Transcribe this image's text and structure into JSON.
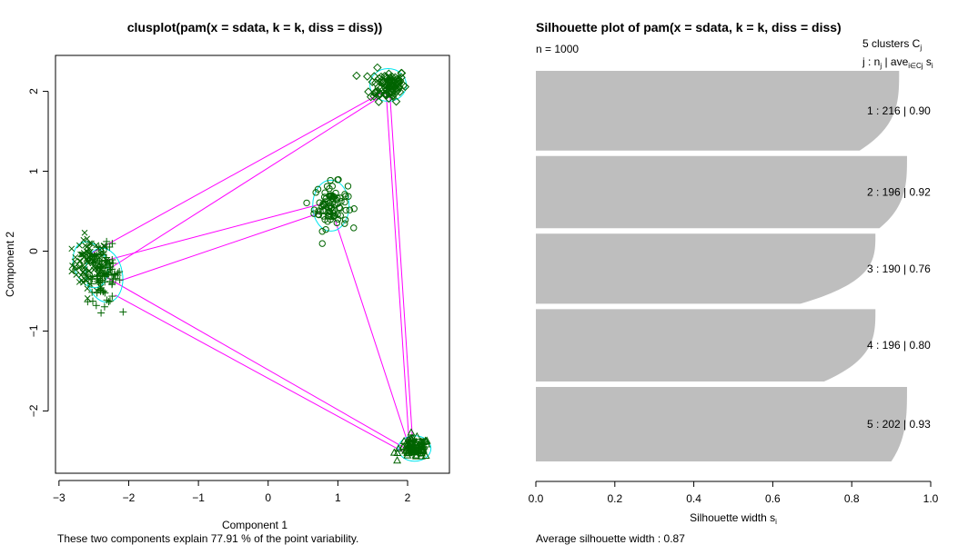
{
  "clusplot": {
    "title": "clusplot(pam(x = sdata, k = k, diss = diss))",
    "xlabel": "Component 1",
    "ylabel": "Component 2",
    "subtitle": "These two components explain 77.91 % of the point variability.",
    "x_ticks": [
      {
        "v": -3,
        "label": "−3"
      },
      {
        "v": -2,
        "label": "−2"
      },
      {
        "v": -1,
        "label": "−1"
      },
      {
        "v": 0,
        "label": "0"
      },
      {
        "v": 1,
        "label": "1"
      },
      {
        "v": 2,
        "label": "2"
      }
    ],
    "y_ticks": [
      {
        "v": -2,
        "label": "−2"
      },
      {
        "v": -1,
        "label": "−1"
      },
      {
        "v": 0,
        "label": "0"
      },
      {
        "v": 1,
        "label": "1"
      },
      {
        "v": 2,
        "label": "2"
      }
    ]
  },
  "silhouette": {
    "title": "Silhouette plot of pam(x = sdata, k = k, diss = diss)",
    "n_label": "n = 1000",
    "header_line1": "5  clusters  C",
    "header_line1_sub": "j",
    "header_line2": "j :  n",
    "header_line2_sub": "j",
    "header_line2_rest": " | ave",
    "header_line2_sub2": "i∈Cj",
    "header_line2_end": "  s",
    "header_line2_sub3": "i",
    "xlabel": "Silhouette width  s",
    "xlabel_sub": "i",
    "avg_text": "Average silhouette width :  0.87",
    "x_ticks": [
      {
        "v": 0.0,
        "label": "0.0"
      },
      {
        "v": 0.2,
        "label": "0.2"
      },
      {
        "v": 0.4,
        "label": "0.4"
      },
      {
        "v": 0.6,
        "label": "0.6"
      },
      {
        "v": 0.8,
        "label": "0.8"
      },
      {
        "v": 1.0,
        "label": "1.0"
      }
    ],
    "cluster_labels": [
      "1 :  216  |  0.90",
      "2 :  196  |  0.92",
      "3 :  190  |  0.76",
      "4 :  196  |  0.80",
      "5 :  202  |  0.93"
    ]
  },
  "chart_data": [
    {
      "type": "scatter",
      "title": "clusplot(pam(x = sdata, k = k, diss = diss))",
      "xlabel": "Component 1",
      "ylabel": "Component 2",
      "xlim": [
        -3.05,
        2.6
      ],
      "ylim": [
        -2.78,
        2.45
      ],
      "point_color": "#006400",
      "ellipse_color": "#00E5EE",
      "line_color": "#FF00FF",
      "clusters": [
        {
          "id": 1,
          "center": [
            -2.55,
            -0.17
          ],
          "n": 216,
          "symbol": "x"
        },
        {
          "id": 2,
          "center": [
            1.72,
            2.08
          ],
          "n": 196,
          "symbol": "diamond"
        },
        {
          "id": 3,
          "center": [
            0.9,
            0.57
          ],
          "n": 190,
          "symbol": "circle"
        },
        {
          "id": 4,
          "center": [
            -2.35,
            -0.3
          ],
          "n": 196,
          "symbol": "plus"
        },
        {
          "id": 5,
          "center": [
            2.1,
            -2.47
          ],
          "n": 202,
          "symbol": "triangle"
        }
      ]
    },
    {
      "type": "bar",
      "orientation": "horizontal",
      "title": "Silhouette plot of pam(x = sdata, k = k, diss = diss)",
      "xlabel": "Silhouette width s_i",
      "xlim": [
        0,
        1
      ],
      "n": 1000,
      "average_silhouette_width": 0.87,
      "bar_color": "#BEBEBE",
      "clusters": [
        {
          "j": 1,
          "n": 216,
          "ave": 0.9,
          "max": 0.92,
          "min": 0.82
        },
        {
          "j": 2,
          "n": 196,
          "ave": 0.92,
          "max": 0.94,
          "min": 0.87
        },
        {
          "j": 3,
          "n": 190,
          "ave": 0.76,
          "max": 0.86,
          "min": 0.67
        },
        {
          "j": 4,
          "n": 196,
          "ave": 0.8,
          "max": 0.86,
          "min": 0.73
        },
        {
          "j": 5,
          "n": 202,
          "ave": 0.93,
          "max": 0.94,
          "min": 0.9
        }
      ]
    }
  ]
}
